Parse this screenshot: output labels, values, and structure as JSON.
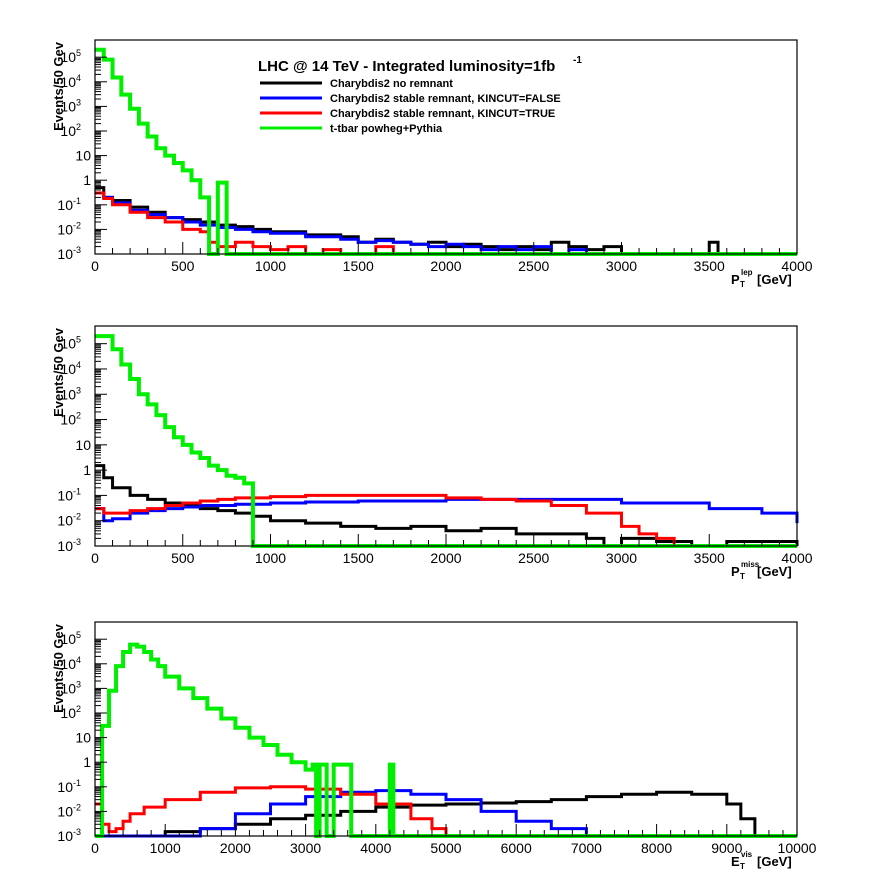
{
  "chart_data": [
    {
      "type": "line",
      "step": true,
      "title": "LHC @ 14 TeV - Integrated luminosity=1fb",
      "title_sup": "-1",
      "ylabel": "Events/50 Gev",
      "xlabel": "P",
      "xlabel_sub": "T",
      "xlabel_sup": "lep",
      "xlabel_unit": "[GeV]",
      "xlim": [
        0,
        4000
      ],
      "ylim": [
        0.001,
        500000
      ],
      "yscale": "log",
      "xticks": [
        0,
        500,
        1000,
        1500,
        2000,
        2500,
        3000,
        3500,
        4000
      ],
      "legend": [
        "Charybdis2 no remnant",
        "Charybdis2 stable remnant, KINCUT=FALSE",
        "Charybdis2 stable remnant, KINCUT=TRUE",
        "t-tbar powheg+Pythia"
      ],
      "legend_position": "top-center",
      "series": [
        {
          "name": "Charybdis2 no remnant",
          "color": "#000000",
          "x": [
            0,
            50,
            100,
            200,
            300,
            400,
            500,
            600,
            700,
            800,
            900,
            1000,
            1200,
            1400,
            1500,
            1600,
            1700,
            1800,
            1900,
            2000,
            2100,
            2200,
            2300,
            2400,
            2500,
            2600,
            2700,
            2800,
            2900,
            3000,
            3500,
            3550,
            3600,
            4000
          ],
          "values": [
            0.5,
            0.2,
            0.15,
            0.08,
            0.05,
            0.03,
            0.025,
            0.02,
            0.015,
            0.013,
            0.01,
            0.008,
            0.006,
            0.005,
            0.003,
            0.004,
            0.003,
            0.0025,
            0.003,
            0.002,
            0.0025,
            0.002,
            0.0015,
            0.002,
            0.0015,
            0.003,
            0.002,
            0.0015,
            0.002,
            0.001,
            0.003,
            0.001,
            0.001,
            0.001
          ]
        },
        {
          "name": "Charybdis2 stable remnant, KINCUT=FALSE",
          "color": "#0000ff",
          "x": [
            0,
            50,
            100,
            200,
            300,
            400,
            500,
            600,
            700,
            800,
            900,
            1000,
            1200,
            1400,
            1500,
            1600,
            1700,
            1800,
            1900,
            2000,
            2100,
            2200,
            2300,
            2400,
            2500,
            2600,
            2700,
            2800,
            2900,
            3000,
            4000
          ],
          "values": [
            0.3,
            0.2,
            0.12,
            0.06,
            0.04,
            0.03,
            0.02,
            0.015,
            0.012,
            0.01,
            0.008,
            0.007,
            0.005,
            0.004,
            0.003,
            0.0035,
            0.003,
            0.0025,
            0.002,
            0.0025,
            0.002,
            0.0015,
            0.002,
            0.0015,
            0.002,
            0.001,
            0.0015,
            0.001,
            0.001,
            0.001,
            0.001
          ]
        },
        {
          "name": "Charybdis2 stable remnant, KINCUT=TRUE",
          "color": "#ff0000",
          "x": [
            0,
            50,
            100,
            200,
            300,
            400,
            500,
            600,
            650,
            700,
            800,
            900,
            1000,
            1100,
            1200,
            1300,
            1400,
            1500,
            1600,
            1700,
            4000
          ],
          "values": [
            0.3,
            0.18,
            0.1,
            0.05,
            0.03,
            0.02,
            0.01,
            0.008,
            0.003,
            0.002,
            0.003,
            0.002,
            0.0015,
            0.002,
            0.001,
            0.0015,
            0.001,
            0.001,
            0.002,
            0.001,
            0.001
          ]
        },
        {
          "name": "t-tbar powheg+Pythia",
          "color": "#00ee00",
          "x": [
            0,
            50,
            100,
            150,
            200,
            250,
            300,
            350,
            400,
            450,
            500,
            550,
            600,
            650,
            700,
            750,
            800,
            4000
          ],
          "values": [
            200000,
            80000,
            15000,
            3000,
            800,
            200,
            60,
            20,
            10,
            5,
            2.5,
            1,
            0.2,
            0.001,
            0.8,
            0.001,
            0.001,
            0.001
          ]
        }
      ]
    },
    {
      "type": "line",
      "step": true,
      "ylabel": "Events/50 Gev",
      "xlabel": "P",
      "xlabel_sub": "T",
      "xlabel_sup": "miss",
      "xlabel_unit": "[GeV]",
      "xlim": [
        0,
        4000
      ],
      "ylim": [
        0.001,
        500000
      ],
      "yscale": "log",
      "xticks": [
        0,
        500,
        1000,
        1500,
        2000,
        2500,
        3000,
        3500,
        4000
      ],
      "series": [
        {
          "name": "Charybdis2 no remnant",
          "color": "#000000",
          "x": [
            0,
            50,
            100,
            200,
            300,
            400,
            500,
            600,
            700,
            800,
            900,
            1000,
            1200,
            1400,
            1600,
            1800,
            2000,
            2200,
            2400,
            2600,
            2800,
            2900,
            3000,
            3200,
            3400,
            3600,
            4000
          ],
          "values": [
            1.5,
            0.5,
            0.2,
            0.1,
            0.07,
            0.05,
            0.04,
            0.03,
            0.025,
            0.02,
            0.015,
            0.01,
            0.008,
            0.006,
            0.005,
            0.006,
            0.004,
            0.005,
            0.003,
            0.003,
            0.002,
            0.001,
            0.002,
            0.0015,
            0.001,
            0.0015,
            0.001
          ]
        },
        {
          "name": "Charybdis2 stable remnant, KINCUT=FALSE",
          "color": "#0000ff",
          "x": [
            0,
            50,
            100,
            200,
            300,
            400,
            500,
            600,
            800,
            1000,
            1200,
            1500,
            2000,
            2500,
            3000,
            3500,
            3800,
            4000
          ],
          "values": [
            0.03,
            0.01,
            0.012,
            0.02,
            0.025,
            0.03,
            0.035,
            0.04,
            0.045,
            0.05,
            0.055,
            0.06,
            0.07,
            0.07,
            0.05,
            0.03,
            0.02,
            0.008
          ]
        },
        {
          "name": "Charybdis2 stable remnant, KINCUT=TRUE",
          "color": "#ff0000",
          "x": [
            0,
            50,
            100,
            200,
            300,
            400,
            500,
            600,
            700,
            800,
            1000,
            1200,
            1500,
            2000,
            2200,
            2400,
            2600,
            2800,
            3000,
            3100,
            3200,
            3300,
            4000
          ],
          "values": [
            0.03,
            0.02,
            0.02,
            0.025,
            0.03,
            0.04,
            0.05,
            0.06,
            0.07,
            0.08,
            0.09,
            0.1,
            0.1,
            0.08,
            0.07,
            0.06,
            0.04,
            0.02,
            0.006,
            0.003,
            0.002,
            0.001,
            0.001
          ]
        },
        {
          "name": "t-tbar powheg+Pythia",
          "color": "#00ee00",
          "x": [
            0,
            50,
            100,
            150,
            200,
            250,
            300,
            350,
            400,
            450,
            500,
            550,
            600,
            650,
            700,
            750,
            800,
            850,
            900,
            4000
          ],
          "values": [
            200000,
            200000,
            60000,
            15000,
            4000,
            1000,
            400,
            150,
            50,
            20,
            10,
            5,
            3,
            1.5,
            1,
            0.6,
            0.5,
            0.3,
            0.001,
            0.001
          ]
        }
      ]
    },
    {
      "type": "line",
      "step": true,
      "ylabel": "Events/50 Gev",
      "xlabel": "E",
      "xlabel_sub": "T",
      "xlabel_sup": "vis",
      "xlabel_unit": "[GeV]",
      "xlim": [
        0,
        10000
      ],
      "ylim": [
        0.001,
        500000
      ],
      "yscale": "log",
      "xticks": [
        0,
        1000,
        2000,
        3000,
        4000,
        5000,
        6000,
        7000,
        8000,
        9000,
        10000
      ],
      "series": [
        {
          "name": "Charybdis2 no remnant",
          "color": "#000000",
          "x": [
            0,
            500,
            1000,
            1500,
            2000,
            2500,
            3000,
            3500,
            4000,
            4500,
            5000,
            5500,
            6000,
            6500,
            7000,
            7500,
            8000,
            8500,
            9000,
            9200,
            9400,
            10000
          ],
          "values": [
            0.001,
            0.001,
            0.0015,
            0.002,
            0.003,
            0.005,
            0.007,
            0.01,
            0.015,
            0.018,
            0.02,
            0.022,
            0.025,
            0.03,
            0.04,
            0.05,
            0.06,
            0.05,
            0.02,
            0.005,
            0.001,
            0.001
          ]
        },
        {
          "name": "Charybdis2 stable remnant, KINCUT=FALSE",
          "color": "#0000ff",
          "x": [
            0,
            1000,
            1500,
            2000,
            2500,
            3000,
            3500,
            4000,
            4500,
            5000,
            5500,
            6000,
            6500,
            7000,
            10000
          ],
          "values": [
            0.001,
            0.001,
            0.002,
            0.008,
            0.02,
            0.04,
            0.06,
            0.07,
            0.05,
            0.03,
            0.01,
            0.004,
            0.002,
            0.001,
            0.001
          ]
        },
        {
          "name": "Charybdis2 stable remnant, KINCUT=TRUE",
          "color": "#ff0000",
          "x": [
            0,
            100,
            200,
            300,
            400,
            500,
            700,
            1000,
            1500,
            2000,
            2500,
            3000,
            3500,
            4000,
            4500,
            4800,
            5000,
            10000
          ],
          "values": [
            0.02,
            0.003,
            0.0015,
            0.002,
            0.004,
            0.008,
            0.015,
            0.03,
            0.06,
            0.09,
            0.1,
            0.08,
            0.05,
            0.02,
            0.005,
            0.002,
            0.001,
            0.001
          ]
        },
        {
          "name": "t-tbar powheg+Pythia",
          "color": "#00ee00",
          "x": [
            0,
            100,
            200,
            300,
            400,
            500,
            600,
            700,
            800,
            900,
            1000,
            1200,
            1400,
            1600,
            1800,
            2000,
            2200,
            2400,
            2600,
            2800,
            3000,
            3100,
            3150,
            3200,
            3300,
            3400,
            3500,
            3650,
            3700,
            4200,
            4250,
            4300,
            10000
          ],
          "values": [
            0.001,
            30,
            800,
            8000,
            30000,
            60000,
            50000,
            30000,
            15000,
            8000,
            3000,
            1000,
            400,
            150,
            60,
            25,
            10,
            5,
            2,
            1,
            0.5,
            0.8,
            0.001,
            0.8,
            0.001,
            0.8,
            0.8,
            0.001,
            0.001,
            0.8,
            0.001,
            0.001,
            0.001
          ]
        }
      ]
    }
  ],
  "yticks": [
    "10⁻³|10|-3",
    "10⁻²|10|-2",
    "10⁻¹|10|-1",
    "1",
    "10",
    "10²|10|2",
    "10³|10|3",
    "10⁴|10|4",
    "10⁵|10|5"
  ]
}
